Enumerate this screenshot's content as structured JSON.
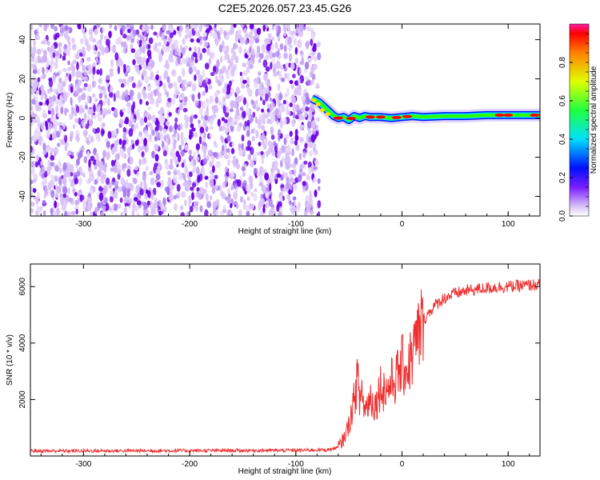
{
  "title": "C2E5.2026.057.23.45.G26",
  "chart_data": [
    {
      "type": "heatmap",
      "xlabel": "Height of straight line (km)",
      "ylabel": "Frequency (Hz)",
      "xlim": [
        -350,
        130
      ],
      "ylim": [
        -50,
        48
      ],
      "xticks": [
        -300,
        -200,
        -100,
        0,
        100
      ],
      "yticks": [
        -40,
        -20,
        0,
        20,
        40
      ],
      "noise_region_x": [
        -350,
        -78
      ],
      "signal_line": {
        "x": [
          -85,
          -78,
          -72,
          -68,
          -64,
          -60,
          -55,
          -50,
          -45,
          -40,
          -35,
          -30,
          -20,
          -10,
          0,
          10,
          20,
          40,
          60,
          80,
          100,
          120,
          130
        ],
        "y": [
          10,
          8,
          5,
          3,
          1,
          0,
          0.5,
          -1,
          1,
          0,
          1,
          0.5,
          0.5,
          0,
          0.5,
          1,
          0.5,
          1,
          1,
          1.5,
          1.5,
          1.5,
          1.5
        ]
      },
      "colorbar": {
        "label": "Normalized spectral amplitude",
        "range": [
          0,
          1
        ],
        "ticks": [
          "0.0",
          "0.2",
          "0.4",
          "0.6",
          "0.8"
        ]
      },
      "colors": {
        "noise_dark": "#6a00e8",
        "noise_light": "#d9c2f7",
        "line_blue": "#0010ff",
        "line_green": "#2bff00",
        "line_red": "#ff0000"
      }
    },
    {
      "type": "line",
      "xlabel": "Height of straight line (km)",
      "ylabel": "SNR (10 * v/v)",
      "xlim": [
        -350,
        130
      ],
      "ylim": [
        0,
        6800
      ],
      "xticks": [
        -300,
        -200,
        -100,
        0,
        100
      ],
      "yticks": [
        2000,
        4000,
        6000
      ],
      "series": [
        {
          "color": "#ee3030",
          "x": [
            -350,
            -300,
            -200,
            -100,
            -70,
            -60,
            -55,
            -50,
            -45,
            -42,
            -40,
            -38,
            -35,
            -30,
            -25,
            -20,
            -15,
            -10,
            -5,
            0,
            5,
            10,
            15,
            20,
            30,
            40,
            50,
            60,
            70,
            80,
            90,
            100,
            110,
            120,
            130
          ],
          "y": [
            180,
            180,
            190,
            200,
            220,
            300,
            600,
            1100,
            2000,
            2800,
            1900,
            2400,
            1600,
            2100,
            1800,
            2500,
            2300,
            2600,
            2800,
            3200,
            3100,
            3600,
            4200,
            4800,
            5300,
            5600,
            5750,
            5850,
            5900,
            5950,
            5980,
            6000,
            6020,
            6050,
            6060
          ]
        }
      ]
    }
  ]
}
